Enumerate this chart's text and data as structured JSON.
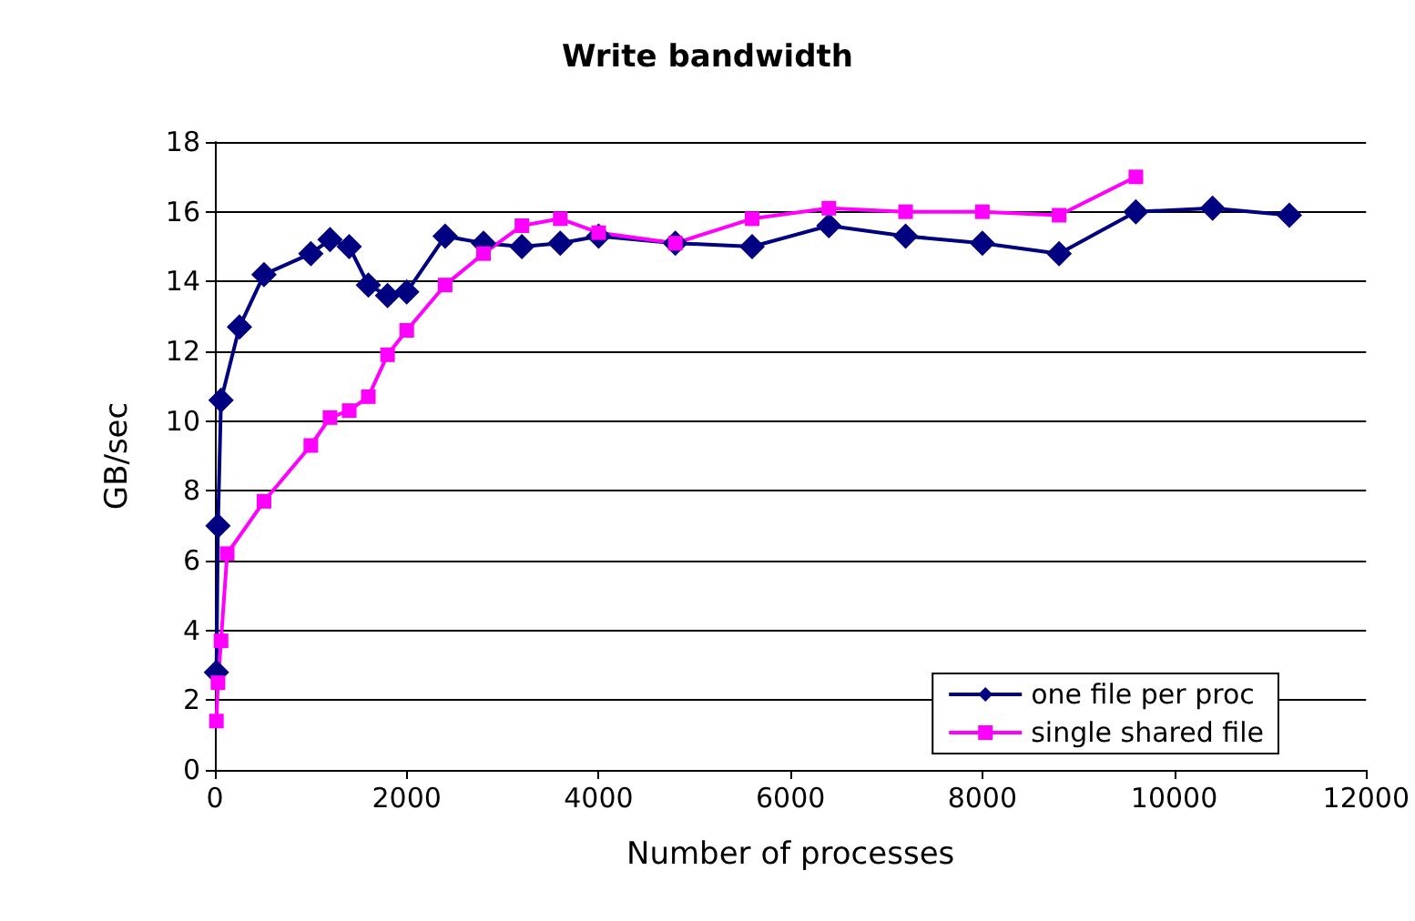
{
  "chart_data": {
    "type": "line",
    "title": "Write bandwidth",
    "xlabel": "Number of processes",
    "ylabel": "GB/sec",
    "series": [
      {
        "name": "one file per proc",
        "color": "#000080",
        "marker": "diamond",
        "x": [
          16,
          32,
          64,
          256,
          512,
          1000,
          1200,
          1400,
          1600,
          1800,
          2000,
          2400,
          2800,
          3200,
          3600,
          4000,
          4800,
          5600,
          6400,
          7200,
          8000,
          8800,
          9600,
          10400,
          11200
        ],
        "values": [
          2.8,
          7.0,
          10.6,
          12.7,
          14.2,
          14.8,
          15.2,
          15.0,
          13.9,
          13.6,
          13.7,
          15.3,
          15.1,
          15.0,
          15.1,
          15.3,
          15.1,
          15.0,
          15.6,
          15.3,
          15.1,
          14.8,
          16.0,
          16.1,
          15.9
        ]
      },
      {
        "name": "single shared file",
        "color": "#ff00ff",
        "marker": "square",
        "x": [
          16,
          32,
          64,
          128,
          512,
          1000,
          1200,
          1400,
          1600,
          1800,
          2000,
          2400,
          2800,
          3200,
          3600,
          4000,
          4800,
          5600,
          6400,
          7200,
          8000,
          8800,
          9600
        ],
        "values": [
          1.4,
          2.5,
          3.7,
          6.2,
          7.7,
          9.3,
          10.1,
          10.3,
          10.7,
          11.9,
          12.6,
          13.9,
          14.8,
          15.6,
          15.8,
          15.4,
          15.1,
          15.8,
          16.1,
          16.0,
          16.0,
          15.9,
          17.0
        ]
      }
    ],
    "xlim": [
      0,
      12000
    ],
    "xticks": [
      0,
      2000,
      4000,
      6000,
      8000,
      10000,
      12000
    ],
    "ylim": [
      0,
      18
    ],
    "yticks": [
      0,
      2,
      4,
      6,
      8,
      10,
      12,
      14,
      16,
      18
    ],
    "grid": "y",
    "legend": "bottom right"
  }
}
